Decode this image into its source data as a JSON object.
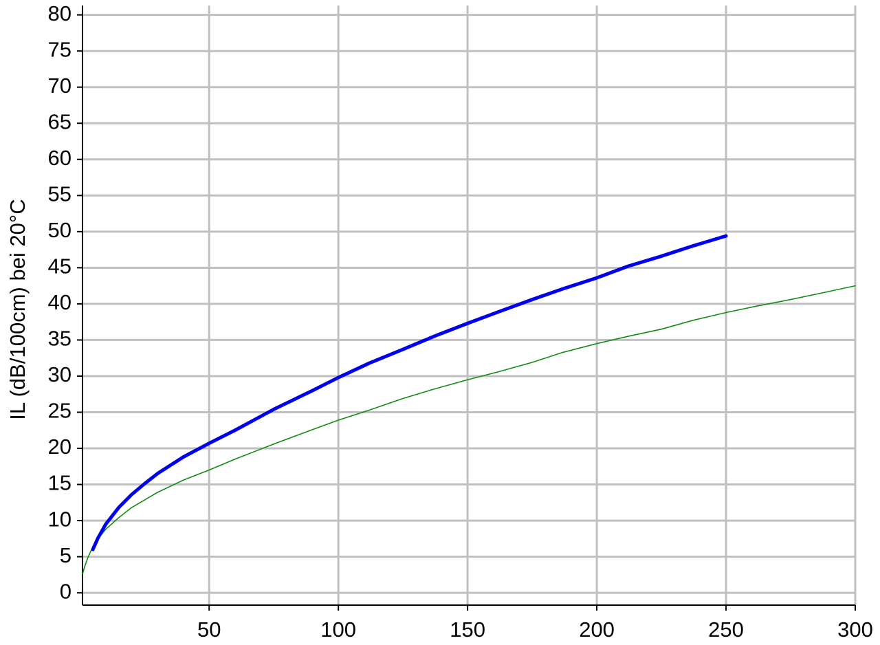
{
  "chart_data": {
    "type": "line",
    "y_label": "IL (dB/100cm) bei 20°C",
    "xlim": [
      1,
      300
    ],
    "ylim": [
      -1.7,
      81.3
    ],
    "xticks": [
      50,
      100,
      150,
      200,
      250,
      300
    ],
    "yticks": [
      0,
      5,
      10,
      15,
      20,
      25,
      30,
      35,
      40,
      45,
      50,
      55,
      60,
      65,
      70,
      75,
      80
    ],
    "grid": true,
    "series": [
      {
        "name": "Series 1",
        "color": "#0000ee",
        "x": [
          5,
          7,
          10,
          15,
          20,
          25,
          30,
          40,
          50,
          60,
          75,
          90,
          100,
          112,
          125,
          137,
          150,
          162,
          175,
          187,
          200,
          212,
          225,
          237,
          250
        ],
        "values": [
          6,
          7.6,
          9.5,
          11.8,
          13.6,
          15.1,
          16.5,
          18.8,
          20.7,
          22.5,
          25.4,
          28.0,
          29.8,
          31.8,
          33.7,
          35.5,
          37.3,
          38.9,
          40.6,
          42.1,
          43.6,
          45.2,
          46.6,
          48.0,
          49.4
        ]
      },
      {
        "name": "Series 2",
        "color": "#138a13",
        "x": [
          1,
          2,
          3,
          5,
          7,
          10,
          15,
          20,
          30,
          40,
          50,
          60,
          75,
          90,
          100,
          112,
          125,
          137,
          150,
          162,
          175,
          187,
          200,
          212,
          225,
          237,
          250,
          262,
          275,
          287,
          300
        ],
        "values": [
          2.6,
          3.8,
          4.8,
          6.4,
          7.5,
          8.8,
          10.4,
          11.8,
          13.9,
          15.6,
          17.0,
          18.5,
          20.6,
          22.6,
          23.9,
          25.3,
          26.9,
          28.2,
          29.5,
          30.6,
          31.9,
          33.3,
          34.5,
          35.5,
          36.5,
          37.7,
          38.8,
          39.7,
          40.6,
          41.5,
          42.5
        ]
      }
    ]
  }
}
